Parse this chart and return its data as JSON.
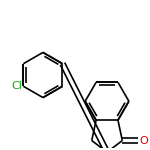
{
  "bg_color": "#ffffff",
  "bond_color": "#000000",
  "cl_color": "#00aa00",
  "o_color": "#dd0000",
  "bond_width": 1.2,
  "font_size": 8,
  "figsize": [
    1.5,
    1.5
  ],
  "dpi": 100,
  "xlim": [
    0,
    10
  ],
  "ylim": [
    0,
    10
  ]
}
